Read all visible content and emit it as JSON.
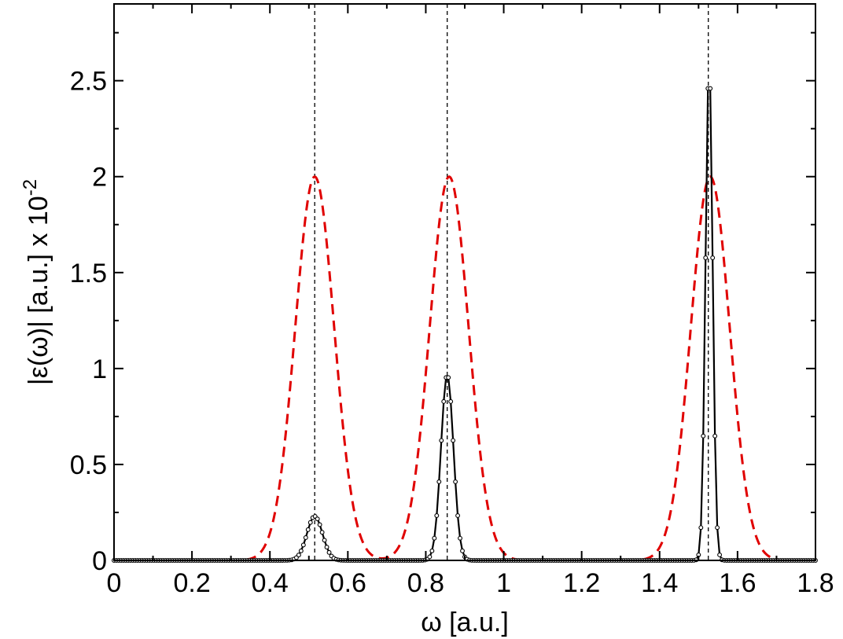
{
  "chart_data": {
    "type": "line",
    "xlabel": "ω [a.u.]",
    "ylabel_main": "|ε(ω)| [a.u.] x 10",
    "ylabel_exponent": "-2",
    "xlim": [
      0,
      1.8
    ],
    "ylim": [
      0,
      2.9
    ],
    "x_ticks": [
      0,
      0.2,
      0.4,
      0.6,
      0.8,
      1,
      1.2,
      1.4,
      1.6,
      1.8
    ],
    "x_tick_labels": [
      "0",
      "0.2",
      "0.4",
      "0.6",
      "0.8",
      "1",
      "1.2",
      "1.4",
      "1.6",
      "1.8"
    ],
    "y_ticks": [
      0,
      0.5,
      1,
      1.5,
      2,
      2.5
    ],
    "y_tick_labels": [
      "0",
      "0.5",
      "1",
      "1.5",
      "2",
      "2.5"
    ],
    "grid": false,
    "vertical_reference_lines": [
      0.515,
      0.855,
      1.525
    ],
    "series": [
      {
        "style": "dashed-red",
        "color": "#e00000",
        "peaks": [
          {
            "center": 0.515,
            "height": 2.0,
            "width": 0.05
          },
          {
            "center": 0.86,
            "height": 2.0,
            "width": 0.05
          },
          {
            "center": 1.53,
            "height": 2.0,
            "width": 0.05
          }
        ]
      },
      {
        "style": "solid-black-circles",
        "color": "#000000",
        "peaks": [
          {
            "center": 0.515,
            "height": 0.23,
            "width": 0.02
          },
          {
            "center": 0.855,
            "height": 0.97,
            "width": 0.016
          },
          {
            "center": 1.527,
            "height": 2.6,
            "width": 0.009
          }
        ]
      }
    ]
  }
}
